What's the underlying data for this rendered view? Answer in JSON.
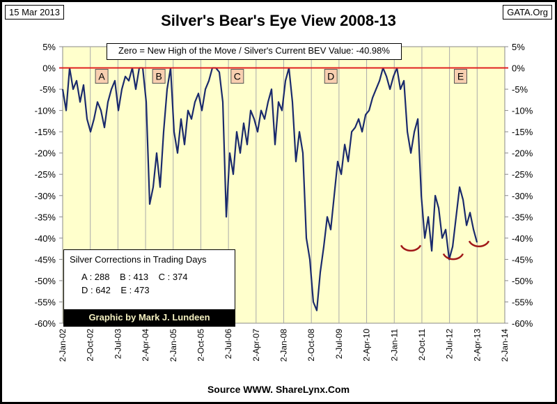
{
  "header": {
    "date": "15 Mar 2013",
    "source_badge": "GATA.Org",
    "title": "Silver's Bear's Eye View 2008-13"
  },
  "footer": {
    "source": "Source WWW. ShareLynx.Com"
  },
  "legend": {
    "title": "Silver Corrections in Trading Days",
    "rows": [
      [
        "A : 288",
        "B : 413",
        "C : 374"
      ],
      [
        "D : 642",
        "E : 473"
      ]
    ],
    "credit": "Graphic by Mark J. Lundeen"
  },
  "chart_data": {
    "type": "line",
    "title": "Silver's Bear's Eye View 2008-13",
    "subtitle": "Zero = New High of the Move / Silver's Current BEV Value: -40.98%",
    "colors": {
      "line": "#1a2a6c",
      "zero_line": "#e02020",
      "background": "#ffffcc",
      "markers": "#f8cfb0",
      "arcs": "#a01818"
    },
    "ylim": [
      -60,
      5
    ],
    "yticks": [
      5,
      0,
      -5,
      -10,
      -15,
      -20,
      -25,
      -30,
      -35,
      -40,
      -45,
      -50,
      -55,
      -60
    ],
    "ytick_labels": [
      "5%",
      "0%",
      "-5%",
      "-10%",
      "-15%",
      "-20%",
      "-25%",
      "-30%",
      "-35%",
      "-40%",
      "-45%",
      "-50%",
      "-55%",
      "-60%"
    ],
    "xlim": [
      0,
      12
    ],
    "xtick_labels": [
      "2-Jan-02",
      "2-Oct-02",
      "2-Jul-03",
      "2-Apr-04",
      "2-Jan-05",
      "2-Oct-05",
      "2-Jul-06",
      "2-Apr-07",
      "2-Jan-08",
      "2-Oct-08",
      "2-Jul-09",
      "2-Apr-10",
      "2-Jan-11",
      "2-Oct-11",
      "2-Jul-12",
      "2-Apr-13",
      "2-Jan-14"
    ],
    "x_start": 0,
    "x_step": 0.0945,
    "values": [
      -5,
      -10,
      0,
      -5,
      -3,
      -8,
      -4,
      -12,
      -15,
      -12,
      -8,
      -10,
      -14,
      -8,
      -5,
      -3,
      -10,
      -5,
      -2,
      -3,
      0,
      -5,
      0,
      0,
      -8,
      -32,
      -28,
      -20,
      -28,
      -15,
      -5,
      0,
      -15,
      -20,
      -12,
      -18,
      -10,
      -12,
      -8,
      -6,
      -10,
      -5,
      -3,
      0,
      0,
      -1,
      -8,
      -35,
      -20,
      -25,
      -15,
      -20,
      -13,
      -18,
      -10,
      -12,
      -15,
      -10,
      -12,
      -8,
      -5,
      -18,
      -8,
      -10,
      -3,
      0,
      -8,
      -22,
      -15,
      -20,
      -40,
      -45,
      -55,
      -57,
      -48,
      -42,
      -35,
      -38,
      -30,
      -22,
      -25,
      -18,
      -22,
      -15,
      -14,
      -12,
      -15,
      -11,
      -10,
      -7,
      -5,
      -3,
      0,
      -2,
      -5,
      -2,
      0,
      -5,
      -3,
      -15,
      -20,
      -15,
      -12,
      -30,
      -40,
      -35,
      -43,
      -30,
      -33,
      -40,
      -38,
      -45,
      -42,
      -35,
      -28,
      -31,
      -37,
      -34,
      -38,
      -41
    ],
    "markers": [
      {
        "label": "A",
        "x": 1.06
      },
      {
        "label": "B",
        "x": 2.61
      },
      {
        "label": "C",
        "x": 4.74
      },
      {
        "label": "D",
        "x": 7.28
      },
      {
        "label": "E",
        "x": 10.8
      }
    ],
    "arcs": [
      {
        "x": 9.45,
        "y": -43
      },
      {
        "x": 10.6,
        "y": -45
      },
      {
        "x": 11.3,
        "y": -42
      }
    ]
  }
}
